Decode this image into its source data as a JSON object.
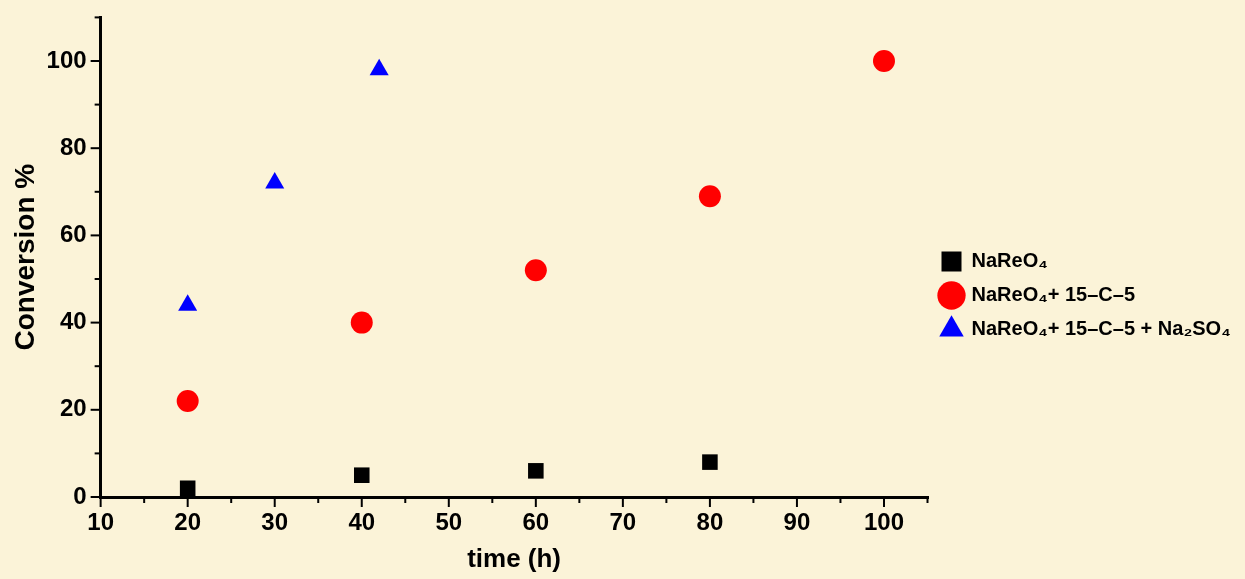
{
  "chart_data": {
    "type": "scatter",
    "xlabel": "time (h)",
    "ylabel": "Conversion %",
    "xlim": [
      10,
      105
    ],
    "xticks": [
      10,
      {
        "value": 15,
        "label": null
      },
      20,
      {
        "value": 25,
        "label": null
      },
      30,
      {
        "value": 35,
        "label": null
      },
      40,
      {
        "value": 45,
        "label": null
      },
      50,
      {
        "value": 55,
        "label": null
      },
      60,
      {
        "value": 65,
        "label": null
      },
      70,
      {
        "value": 75,
        "label": null
      },
      80,
      {
        "value": 85,
        "label": null
      },
      90,
      {
        "value": 95,
        "label": null
      },
      100,
      {
        "value": 105,
        "label": null
      }
    ],
    "ylim": [
      0,
      110
    ],
    "yticks": [
      0,
      {
        "value": 10,
        "label": null
      },
      20,
      {
        "value": 30,
        "label": null
      },
      40,
      {
        "value": 50,
        "label": null
      },
      60,
      {
        "value": 70,
        "label": null
      },
      80,
      {
        "value": 90,
        "label": null
      },
      100,
      {
        "value": 110,
        "label": null
      }
    ],
    "grid": false,
    "legend": "right",
    "series": [
      {
        "name": "NaReO₄",
        "color": "#000000",
        "marker": "square",
        "x": [
          20,
          40,
          60,
          80
        ],
        "values": [
          2,
          5,
          6,
          8
        ]
      },
      {
        "name": "NaReO₄+ 15–C–5",
        "color": "#ff0000",
        "marker": "circle",
        "x": [
          20,
          40,
          60,
          80,
          100
        ],
        "values": [
          22,
          40,
          52,
          69,
          100
        ]
      },
      {
        "name": "NaReO₄+ 15–C–5 + Na₂SO₄",
        "color": "#0000ff",
        "marker": "triangle",
        "x": [
          20,
          30,
          42
        ],
        "values": [
          44,
          72,
          98
        ]
      }
    ]
  }
}
